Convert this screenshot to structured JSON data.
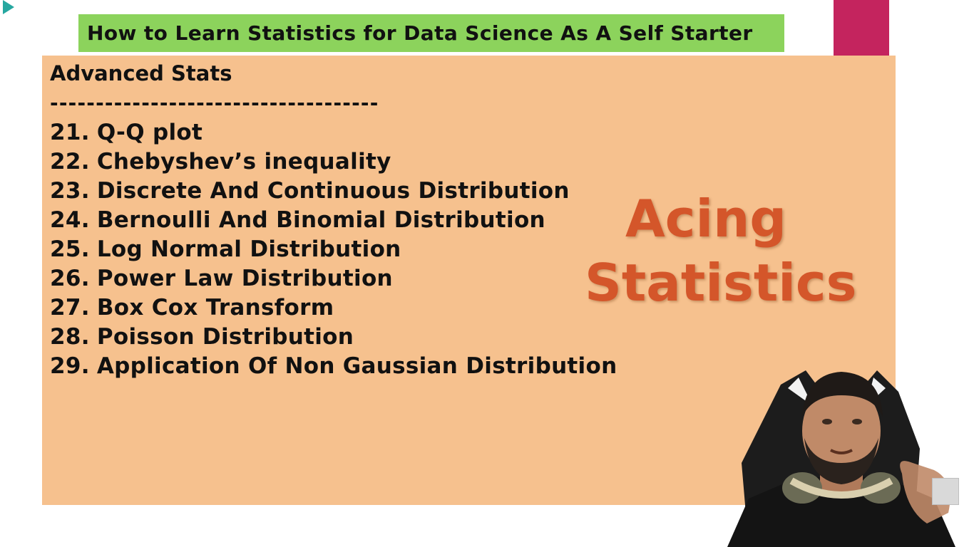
{
  "slide": {
    "title": "How to Learn Statistics for Data Science As A Self Starter",
    "section_heading": "Advanced Stats",
    "divider": "------------------------------------",
    "topics": [
      {
        "number": "21.",
        "label": "Q-Q plot"
      },
      {
        "number": "22.",
        "label": "Chebyshev’s inequality"
      },
      {
        "number": "23.",
        "label": "Discrete And Continuous Distribution"
      },
      {
        "number": "24.",
        "label": "Bernoulli And Binomial Distribution"
      },
      {
        "number": "25.",
        "label": "Log Normal Distribution"
      },
      {
        "number": "26.",
        "label": "Power Law Distribution"
      },
      {
        "number": "27.",
        "label": "Box Cox Transform"
      },
      {
        "number": "28.",
        "label": "Poisson Distribution"
      },
      {
        "number": "29.",
        "label": "Application Of Non Gaussian Distribution"
      }
    ],
    "highlight_line1": "Acing",
    "highlight_line2": "Statistics"
  },
  "colors": {
    "title_bar": "#8cd35c",
    "content_panel": "#f6c18e",
    "accent_magenta": "#c4245e",
    "highlight_text": "#d4562a"
  },
  "icons": {
    "left_arrow": "play-arrow-icon",
    "presenter": "presenter-webcam",
    "avatar": "channel-avatar-icon"
  }
}
